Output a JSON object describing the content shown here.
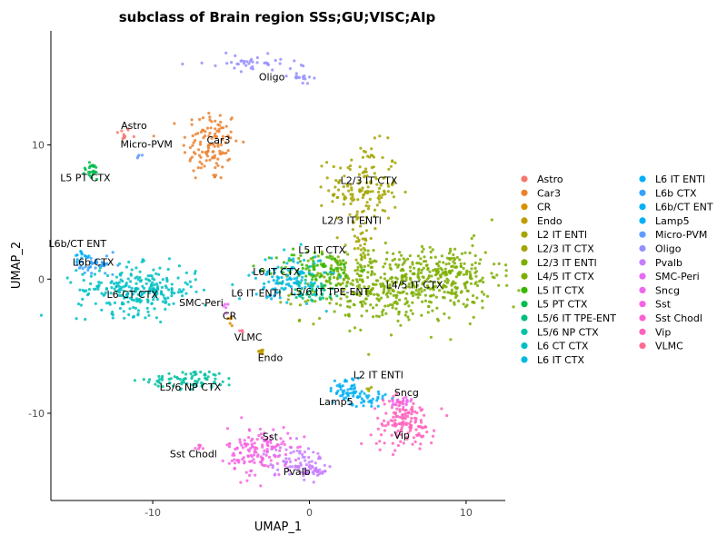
{
  "chart_data": {
    "type": "scatter",
    "title": "subclass of Brain region SSs;GU;VISC;AIp",
    "xlabel": "UMAP_1",
    "ylabel": "UMAP_2",
    "xlim": [
      -16.5,
      12.5
    ],
    "ylim": [
      -16.5,
      18.5
    ],
    "xticks": [
      -10,
      0,
      10
    ],
    "yticks": [
      -10,
      0,
      10
    ],
    "grid": false,
    "legend_position": "right",
    "legend_columns": 2,
    "series": [
      {
        "name": "Astro",
        "color": "#F8766D",
        "clusters": [
          {
            "x": -11.9,
            "y": 10.8,
            "sx": 0.25,
            "sy": 0.25,
            "n": 10
          }
        ]
      },
      {
        "name": "Car3",
        "color": "#EA8331",
        "clusters": [
          {
            "x": -6.3,
            "y": 10.0,
            "sx": 0.9,
            "sy": 1.4,
            "n": 120
          }
        ]
      },
      {
        "name": "CR",
        "color": "#D89000",
        "clusters": [
          {
            "x": -5.0,
            "y": -3.0,
            "sx": 0.12,
            "sy": 0.35,
            "n": 6
          }
        ]
      },
      {
        "name": "Endo",
        "color": "#C09B00",
        "clusters": [
          {
            "x": -3.1,
            "y": -5.4,
            "sx": 0.15,
            "sy": 0.1,
            "n": 8
          }
        ]
      },
      {
        "name": "L2 IT ENTl",
        "color": "#A3A500",
        "clusters": [
          {
            "x": 3.9,
            "y": -8.2,
            "sx": 0.1,
            "sy": 0.1,
            "n": 4
          }
        ]
      },
      {
        "name": "L2/3 IT CTX",
        "color": "#A3A500",
        "clusters": [
          {
            "x": 3.5,
            "y": 6.8,
            "sx": 1.1,
            "sy": 1.6,
            "n": 150
          },
          {
            "x": 3.3,
            "y": 3.0,
            "sx": 0.3,
            "sy": 1.0,
            "n": 30
          }
        ]
      },
      {
        "name": "L2/3 IT ENTl",
        "color": "#7CAE00",
        "clusters": [
          {
            "x": 2.0,
            "y": 1.0,
            "sx": 0.8,
            "sy": 0.6,
            "n": 30
          }
        ]
      },
      {
        "name": "L4/5 IT CTX",
        "color": "#7CAE00",
        "clusters": [
          {
            "x": 5.2,
            "y": -0.6,
            "sx": 2.8,
            "sy": 1.3,
            "n": 420
          },
          {
            "x": 9.0,
            "y": 0.3,
            "sx": 1.6,
            "sy": 1.2,
            "n": 160
          }
        ]
      },
      {
        "name": "L5 IT CTX",
        "color": "#39B600",
        "clusters": [
          {
            "x": 0.5,
            "y": 0.8,
            "sx": 1.3,
            "sy": 0.7,
            "n": 90
          }
        ]
      },
      {
        "name": "L5 PT CTX",
        "color": "#00BB4E",
        "clusters": [
          {
            "x": -13.9,
            "y": 8.0,
            "sx": 0.3,
            "sy": 0.35,
            "n": 25
          }
        ]
      },
      {
        "name": "L5/6 IT TPE-ENT",
        "color": "#00BF7D",
        "clusters": [
          {
            "x": 0.3,
            "y": -0.9,
            "sx": 0.9,
            "sy": 0.4,
            "n": 40
          }
        ]
      },
      {
        "name": "L5/6 NP CTX",
        "color": "#00C1A3",
        "clusters": [
          {
            "x": -7.4,
            "y": -7.5,
            "sx": 1.4,
            "sy": 0.35,
            "n": 80
          }
        ]
      },
      {
        "name": "L6 CT CTX",
        "color": "#00BFC4",
        "clusters": [
          {
            "x": -11.0,
            "y": -0.8,
            "sx": 1.9,
            "sy": 0.9,
            "n": 260
          }
        ]
      },
      {
        "name": "L6 IT CTX",
        "color": "#00BAE0",
        "clusters": [
          {
            "x": -1.2,
            "y": 0.2,
            "sx": 1.1,
            "sy": 0.9,
            "n": 110
          }
        ]
      },
      {
        "name": "L6 IT ENTl",
        "color": "#00B0F6",
        "clusters": [
          {
            "x": -2.3,
            "y": -1.2,
            "sx": 0.2,
            "sy": 0.2,
            "n": 8
          }
        ]
      },
      {
        "name": "L6b CTX",
        "color": "#35A2FF",
        "clusters": [
          {
            "x": -13.6,
            "y": 1.0,
            "sx": 0.7,
            "sy": 0.4,
            "n": 40
          }
        ]
      },
      {
        "name": "L6b/CT ENT",
        "color": "#00B0F6",
        "clusters": [
          {
            "x": -14.5,
            "y": 1.8,
            "sx": 0.3,
            "sy": 0.2,
            "n": 12
          }
        ]
      },
      {
        "name": "Lamp5",
        "color": "#00B0F6",
        "clusters": [
          {
            "x": 2.3,
            "y": -8.2,
            "sx": 0.5,
            "sy": 0.45,
            "n": 40
          },
          {
            "x": 3.5,
            "y": -8.9,
            "sx": 0.7,
            "sy": 0.3,
            "n": 40
          }
        ]
      },
      {
        "name": "Micro-PVM",
        "color": "#619CFF",
        "clusters": [
          {
            "x": -10.8,
            "y": 9.2,
            "sx": 0.1,
            "sy": 0.1,
            "n": 4
          }
        ]
      },
      {
        "name": "Oligo",
        "color": "#9590FF",
        "clusters": [
          {
            "x": -3.6,
            "y": 16.1,
            "sx": 1.5,
            "sy": 0.3,
            "n": 40
          },
          {
            "x": -0.7,
            "y": 15.2,
            "sx": 0.4,
            "sy": 0.25,
            "n": 15
          }
        ]
      },
      {
        "name": "Pvalb",
        "color": "#C77CFF",
        "clusters": [
          {
            "x": -0.9,
            "y": -13.6,
            "sx": 1.0,
            "sy": 0.6,
            "n": 70
          },
          {
            "x": 0.2,
            "y": -14.2,
            "sx": 0.5,
            "sy": 0.4,
            "n": 30
          }
        ]
      },
      {
        "name": "SMC-Peri",
        "color": "#E76BF3",
        "clusters": [
          {
            "x": -5.3,
            "y": -2.2,
            "sx": 0.1,
            "sy": 0.3,
            "n": 5
          }
        ]
      },
      {
        "name": "Sncg",
        "color": "#ED68ED",
        "clusters": [
          {
            "x": 5.8,
            "y": -9.2,
            "sx": 0.4,
            "sy": 0.3,
            "n": 25
          }
        ]
      },
      {
        "name": "Sst",
        "color": "#F564E3",
        "clusters": [
          {
            "x": -3.2,
            "y": -12.8,
            "sx": 1.0,
            "sy": 0.9,
            "n": 140
          }
        ]
      },
      {
        "name": "Sst Chodl",
        "color": "#FC61D5",
        "clusters": [
          {
            "x": -7.0,
            "y": -12.5,
            "sx": 0.15,
            "sy": 0.1,
            "n": 6
          }
        ]
      },
      {
        "name": "Vip",
        "color": "#FF62BC",
        "clusters": [
          {
            "x": 6.0,
            "y": -10.7,
            "sx": 1.0,
            "sy": 0.9,
            "n": 140
          }
        ]
      },
      {
        "name": "VLMC",
        "color": "#FF6C91",
        "clusters": [
          {
            "x": -4.3,
            "y": -3.9,
            "sx": 0.1,
            "sy": 0.1,
            "n": 4
          }
        ]
      }
    ],
    "annotations": [
      {
        "text": "Astro",
        "x": -11.2,
        "y": 11.2
      },
      {
        "text": "Car3",
        "x": -5.8,
        "y": 10.1
      },
      {
        "text": "Micro-PVM",
        "x": -10.4,
        "y": 9.8
      },
      {
        "text": "L5 PT CTX",
        "x": -14.3,
        "y": 7.3
      },
      {
        "text": "Oligo",
        "x": -2.4,
        "y": 14.8
      },
      {
        "text": "L2/3 IT CTX",
        "x": 3.8,
        "y": 7.1
      },
      {
        "text": "L2/3 IT ENTl",
        "x": 2.7,
        "y": 4.1
      },
      {
        "text": "L6b/CT ENT",
        "x": -14.8,
        "y": 2.4
      },
      {
        "text": "L6b CTX",
        "x": -13.8,
        "y": 1.0
      },
      {
        "text": "L5 IT CTX",
        "x": 0.8,
        "y": 1.9
      },
      {
        "text": "L6 IT CTX",
        "x": -2.1,
        "y": 0.3
      },
      {
        "text": "L6 CT CTX",
        "x": -11.3,
        "y": -1.4
      },
      {
        "text": "L6 IT ENTl",
        "x": -3.4,
        "y": -1.3
      },
      {
        "text": "L5/6 IT TPE-ENT",
        "x": 1.3,
        "y": -1.2
      },
      {
        "text": "L4/5 IT CTX",
        "x": 6.7,
        "y": -0.7
      },
      {
        "text": "SMC-Peri",
        "x": -6.9,
        "y": -2.0
      },
      {
        "text": "CR",
        "x": -5.1,
        "y": -3.0
      },
      {
        "text": "VLMC",
        "x": -3.9,
        "y": -4.6
      },
      {
        "text": "Endo",
        "x": -2.5,
        "y": -6.1
      },
      {
        "text": "L5/6 NP CTX",
        "x": -7.6,
        "y": -8.3
      },
      {
        "text": "L2 IT ENTl",
        "x": 4.4,
        "y": -7.4
      },
      {
        "text": "Sncg",
        "x": 6.2,
        "y": -8.7
      },
      {
        "text": "Lamp5",
        "x": 1.7,
        "y": -9.4
      },
      {
        "text": "Sst",
        "x": -2.5,
        "y": -12.0
      },
      {
        "text": "Vip",
        "x": 5.9,
        "y": -11.9
      },
      {
        "text": "Sst Chodl",
        "x": -7.4,
        "y": -13.3
      },
      {
        "text": "Pvalb",
        "x": -0.8,
        "y": -14.6
      }
    ]
  }
}
